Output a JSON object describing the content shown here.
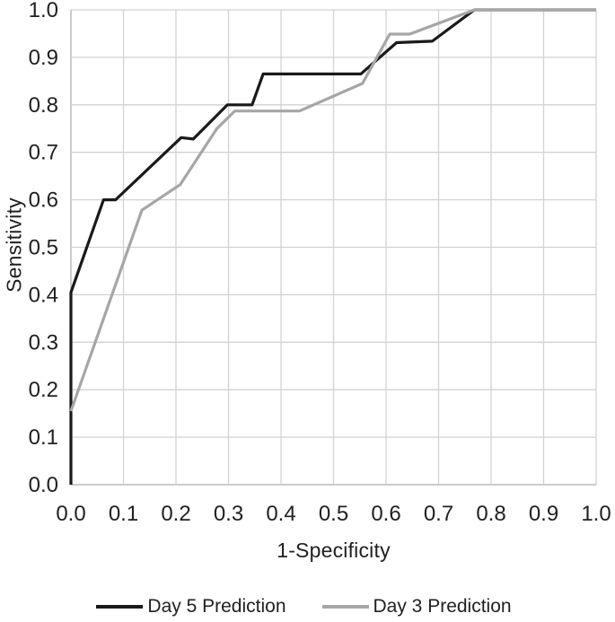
{
  "chart_data": {
    "type": "line",
    "title": "",
    "xlabel": "1-Specificity",
    "ylabel": "Sensitivity",
    "xlim": [
      0.0,
      1.0
    ],
    "ylim": [
      0.0,
      1.0
    ],
    "x_ticks": [
      "0.0",
      "0.1",
      "0.2",
      "0.3",
      "0.4",
      "0.5",
      "0.6",
      "0.7",
      "0.8",
      "0.9",
      "1.0"
    ],
    "y_ticks": [
      "0.0",
      "0.1",
      "0.2",
      "0.3",
      "0.4",
      "0.5",
      "0.6",
      "0.7",
      "0.8",
      "0.9",
      "1.0"
    ],
    "grid": true,
    "legend_position": "bottom",
    "colors": {
      "grid": "#d2d2d2",
      "axis": "#aeaeae",
      "text": "#212121",
      "background": "#ffffff"
    },
    "series": [
      {
        "name": "Day 5 Prediction",
        "color": "#1a1a1a",
        "width": 3.2,
        "points": [
          [
            0,
            0
          ],
          [
            0,
            0.405
          ],
          [
            0.062,
            0.6
          ],
          [
            0.085,
            0.6
          ],
          [
            0.21,
            0.731
          ],
          [
            0.233,
            0.728
          ],
          [
            0.298,
            0.8
          ],
          [
            0.345,
            0.8
          ],
          [
            0.366,
            0.865
          ],
          [
            0.552,
            0.865
          ],
          [
            0.62,
            0.931
          ],
          [
            0.688,
            0.934
          ],
          [
            0.768,
            1.0
          ],
          [
            1,
            1
          ]
        ]
      },
      {
        "name": "Day 3 Prediction",
        "color": "#a6a6a6",
        "width": 3.2,
        "points": [
          [
            0,
            0.155
          ],
          [
            0.135,
            0.578
          ],
          [
            0.208,
            0.632
          ],
          [
            0.278,
            0.75
          ],
          [
            0.312,
            0.787
          ],
          [
            0.435,
            0.787
          ],
          [
            0.555,
            0.845
          ],
          [
            0.607,
            0.949
          ],
          [
            0.645,
            0.949
          ],
          [
            0.768,
            1.0
          ],
          [
            1,
            1
          ]
        ]
      }
    ]
  }
}
